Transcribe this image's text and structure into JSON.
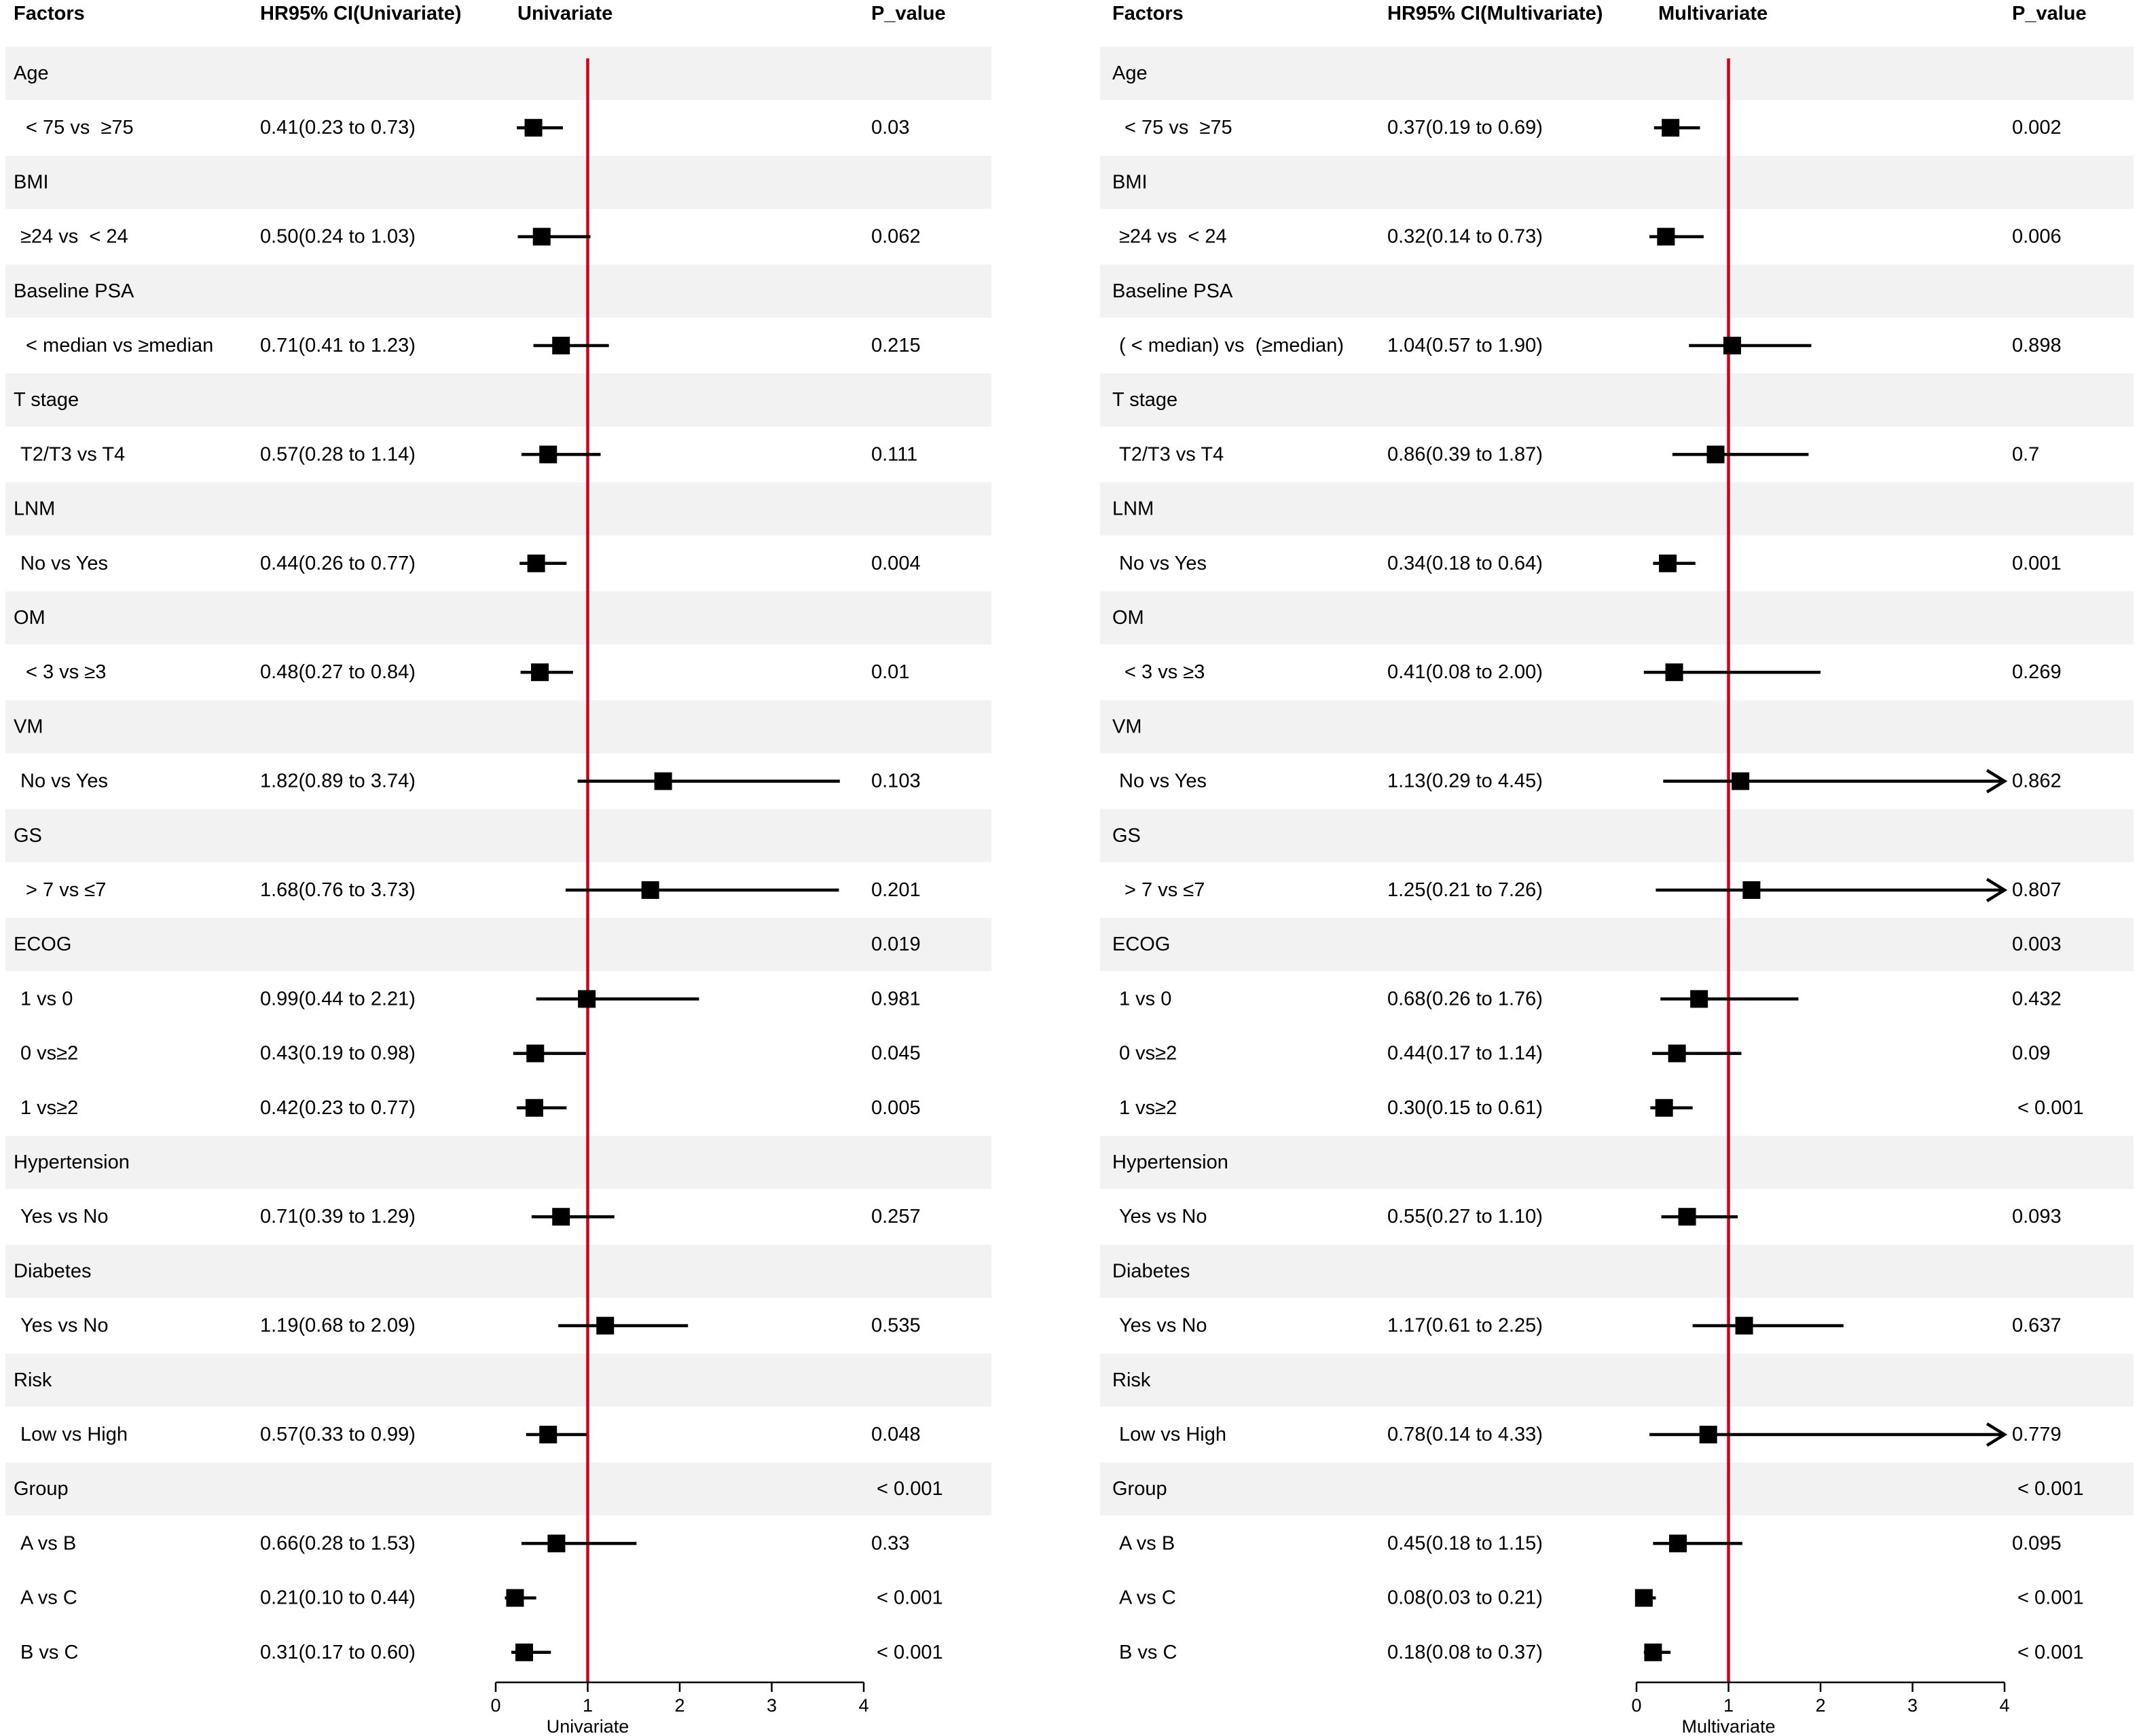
{
  "colors": {
    "band": "#f1f2f1",
    "reference_line": "#d0021b",
    "marker": "#000000",
    "text": "#000000"
  },
  "chart_data": [
    {
      "type": "forest",
      "headers": {
        "factors": "Factors",
        "ci": "HR95% CI(Univariate)",
        "plot": "Univariate",
        "p": "P_value"
      },
      "xlabel": "Univariate",
      "xlim": [
        0,
        4
      ],
      "xticks": [
        0,
        1,
        2,
        3,
        4
      ],
      "reference_x": 1,
      "rows": [
        {
          "label": "Age",
          "header": true
        },
        {
          "label": " < 75 vs  ≥75",
          "ci": "0.41(0.23 to 0.73)",
          "hr": 0.41,
          "lo": 0.23,
          "hi": 0.73,
          "p": "0.03"
        },
        {
          "label": "BMI",
          "header": true
        },
        {
          "label": "≥24 vs  < 24",
          "ci": "0.50(0.24 to 1.03)",
          "hr": 0.5,
          "lo": 0.24,
          "hi": 1.03,
          "p": "0.062"
        },
        {
          "label": "Baseline PSA",
          "header": true
        },
        {
          "label": " < median vs ≥median",
          "ci": "0.71(0.41 to 1.23)",
          "hr": 0.71,
          "lo": 0.41,
          "hi": 1.23,
          "p": "0.215"
        },
        {
          "label": "T stage",
          "header": true
        },
        {
          "label": "T2/T3 vs T4",
          "ci": "0.57(0.28 to 1.14)",
          "hr": 0.57,
          "lo": 0.28,
          "hi": 1.14,
          "p": "0.111"
        },
        {
          "label": "LNM",
          "header": true
        },
        {
          "label": "No vs Yes",
          "ci": "0.44(0.26 to 0.77)",
          "hr": 0.44,
          "lo": 0.26,
          "hi": 0.77,
          "p": "0.004"
        },
        {
          "label": "OM",
          "header": true
        },
        {
          "label": " < 3 vs ≥3",
          "ci": "0.48(0.27 to 0.84)",
          "hr": 0.48,
          "lo": 0.27,
          "hi": 0.84,
          "p": "0.01"
        },
        {
          "label": "VM",
          "header": true
        },
        {
          "label": "No vs Yes",
          "ci": "1.82(0.89 to 3.74)",
          "hr": 1.82,
          "lo": 0.89,
          "hi": 3.74,
          "p": "0.103"
        },
        {
          "label": "GS",
          "header": true
        },
        {
          "label": " > 7 vs ≤7",
          "ci": "1.68(0.76 to 3.73)",
          "hr": 1.68,
          "lo": 0.76,
          "hi": 3.73,
          "p": "0.201"
        },
        {
          "label": "ECOG",
          "header": true,
          "p": "0.019"
        },
        {
          "label": "1 vs 0",
          "ci": "0.99(0.44 to 2.21)",
          "hr": 0.99,
          "lo": 0.44,
          "hi": 2.21,
          "p": "0.981"
        },
        {
          "label": "0 vs≥2",
          "ci": "0.43(0.19 to 0.98)",
          "hr": 0.43,
          "lo": 0.19,
          "hi": 0.98,
          "p": "0.045"
        },
        {
          "label": "1 vs≥2",
          "ci": "0.42(0.23 to 0.77)",
          "hr": 0.42,
          "lo": 0.23,
          "hi": 0.77,
          "p": "0.005"
        },
        {
          "label": "Hypertension",
          "header": true
        },
        {
          "label": "Yes vs No",
          "ci": "0.71(0.39 to 1.29)",
          "hr": 0.71,
          "lo": 0.39,
          "hi": 1.29,
          "p": "0.257"
        },
        {
          "label": "Diabetes",
          "header": true
        },
        {
          "label": "Yes vs No",
          "ci": "1.19(0.68 to 2.09)",
          "hr": 1.19,
          "lo": 0.68,
          "hi": 2.09,
          "p": "0.535"
        },
        {
          "label": "Risk",
          "header": true
        },
        {
          "label": "Low vs High",
          "ci": "0.57(0.33 to 0.99)",
          "hr": 0.57,
          "lo": 0.33,
          "hi": 0.99,
          "p": "0.048"
        },
        {
          "label": "Group",
          "header": true,
          "p": " < 0.001"
        },
        {
          "label": "A vs B",
          "ci": "0.66(0.28 to 1.53)",
          "hr": 0.66,
          "lo": 0.28,
          "hi": 1.53,
          "p": "0.33"
        },
        {
          "label": "A vs C",
          "ci": "0.21(0.10 to 0.44)",
          "hr": 0.21,
          "lo": 0.1,
          "hi": 0.44,
          "p": " < 0.001"
        },
        {
          "label": "B vs C",
          "ci": "0.31(0.17 to 0.60)",
          "hr": 0.31,
          "lo": 0.17,
          "hi": 0.6,
          "p": " < 0.001"
        }
      ]
    },
    {
      "type": "forest",
      "headers": {
        "factors": "Factors",
        "ci": "HR95% CI(Multivariate)",
        "plot": "Multivariate",
        "p": "P_value"
      },
      "xlabel": "Multivariate",
      "xlim": [
        0,
        4
      ],
      "xticks": [
        0,
        1,
        2,
        3,
        4
      ],
      "reference_x": 1,
      "rows": [
        {
          "label": "Age",
          "header": true
        },
        {
          "label": " < 75 vs  ≥75",
          "ci": "0.37(0.19 to 0.69)",
          "hr": 0.37,
          "lo": 0.19,
          "hi": 0.69,
          "p": "0.002"
        },
        {
          "label": "BMI",
          "header": true
        },
        {
          "label": "≥24 vs  < 24",
          "ci": "0.32(0.14 to 0.73)",
          "hr": 0.32,
          "lo": 0.14,
          "hi": 0.73,
          "p": "0.006"
        },
        {
          "label": "Baseline PSA",
          "header": true
        },
        {
          "label": "( < median) vs  (≥median)",
          "ci": "1.04(0.57 to 1.90)",
          "hr": 1.04,
          "lo": 0.57,
          "hi": 1.9,
          "p": "0.898"
        },
        {
          "label": "T stage",
          "header": true
        },
        {
          "label": "T2/T3 vs T4",
          "ci": "0.86(0.39 to 1.87)",
          "hr": 0.86,
          "lo": 0.39,
          "hi": 1.87,
          "p": "0.7"
        },
        {
          "label": "LNM",
          "header": true
        },
        {
          "label": "No vs Yes",
          "ci": "0.34(0.18 to 0.64)",
          "hr": 0.34,
          "lo": 0.18,
          "hi": 0.64,
          "p": "0.001"
        },
        {
          "label": "OM",
          "header": true
        },
        {
          "label": " < 3 vs ≥3",
          "ci": "0.41(0.08 to 2.00)",
          "hr": 0.41,
          "lo": 0.08,
          "hi": 2.0,
          "p": "0.269"
        },
        {
          "label": "VM",
          "header": true
        },
        {
          "label": "No vs Yes",
          "ci": "1.13(0.29 to 4.45)",
          "hr": 1.13,
          "lo": 0.29,
          "hi": 4.45,
          "p": "0.862"
        },
        {
          "label": "GS",
          "header": true
        },
        {
          "label": " > 7 vs ≤7",
          "ci": "1.25(0.21 to 7.26)",
          "hr": 1.25,
          "lo": 0.21,
          "hi": 7.26,
          "p": "0.807"
        },
        {
          "label": "ECOG",
          "header": true,
          "p": "0.003"
        },
        {
          "label": "1 vs 0",
          "ci": "0.68(0.26 to 1.76)",
          "hr": 0.68,
          "lo": 0.26,
          "hi": 1.76,
          "p": "0.432"
        },
        {
          "label": "0 vs≥2",
          "ci": "0.44(0.17 to 1.14)",
          "hr": 0.44,
          "lo": 0.17,
          "hi": 1.14,
          "p": "0.09"
        },
        {
          "label": "1 vs≥2",
          "ci": "0.30(0.15 to 0.61)",
          "hr": 0.3,
          "lo": 0.15,
          "hi": 0.61,
          "p": " < 0.001"
        },
        {
          "label": "Hypertension",
          "header": true
        },
        {
          "label": "Yes vs No",
          "ci": "0.55(0.27 to 1.10)",
          "hr": 0.55,
          "lo": 0.27,
          "hi": 1.1,
          "p": "0.093"
        },
        {
          "label": "Diabetes",
          "header": true
        },
        {
          "label": "Yes vs No",
          "ci": "1.17(0.61 to 2.25)",
          "hr": 1.17,
          "lo": 0.61,
          "hi": 2.25,
          "p": "0.637"
        },
        {
          "label": "Risk",
          "header": true
        },
        {
          "label": "Low vs High",
          "ci": "0.78(0.14 to 4.33)",
          "hr": 0.78,
          "lo": 0.14,
          "hi": 4.33,
          "p": "0.779"
        },
        {
          "label": "Group",
          "header": true,
          "p": " < 0.001"
        },
        {
          "label": "A vs B",
          "ci": "0.45(0.18 to 1.15)",
          "hr": 0.45,
          "lo": 0.18,
          "hi": 1.15,
          "p": "0.095"
        },
        {
          "label": "A vs C",
          "ci": "0.08(0.03 to 0.21)",
          "hr": 0.08,
          "lo": 0.03,
          "hi": 0.21,
          "p": " < 0.001"
        },
        {
          "label": "B vs C",
          "ci": "0.18(0.08 to 0.37)",
          "hr": 0.18,
          "lo": 0.08,
          "hi": 0.37,
          "p": " < 0.001"
        }
      ]
    }
  ]
}
